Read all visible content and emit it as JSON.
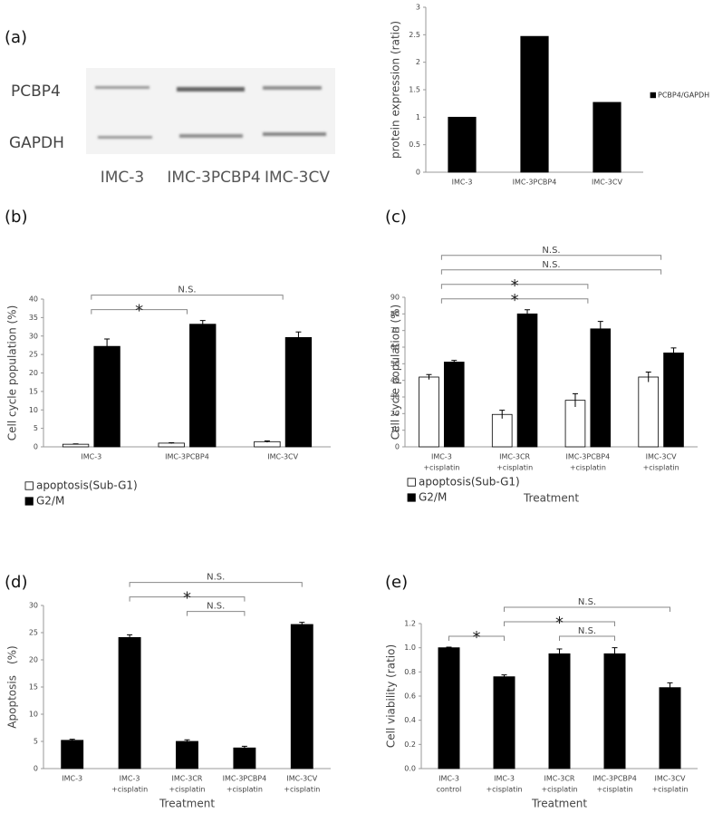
{
  "blot": {
    "panel": "(a)",
    "rows": [
      "PCBP4",
      "GAPDH"
    ],
    "lanes": [
      "IMC-3",
      "IMC-3PCBP4",
      "IMC-3CV"
    ]
  },
  "chart_data": [
    {
      "type": "bar",
      "ylabel": "protein expression (ratio)",
      "categories": [
        [
          "IMC-3"
        ],
        [
          "IMC-3PCBP4"
        ],
        [
          "IMC-3CV"
        ]
      ],
      "series": [
        {
          "name": "PCBP4/GAPDH",
          "color": "#000000",
          "values": [
            1.0,
            2.47,
            1.27
          ]
        }
      ],
      "ylim": [
        0,
        3
      ],
      "yticks": [
        0,
        0.5,
        1,
        1.5,
        2,
        2.5,
        3
      ],
      "legend": "right",
      "annotations": []
    },
    {
      "type": "bar",
      "panel": "(b)",
      "ylabel": "Cell cycle population (%)",
      "categories": [
        [
          "IMC-3"
        ],
        [
          "IMC-3PCBP4"
        ],
        [
          "IMC-3CV"
        ]
      ],
      "series": [
        {
          "name": "apoptosis(Sub-G1)",
          "color": "#ffffff",
          "values": [
            0.7,
            1.0,
            1.4
          ],
          "errors": [
            0.1,
            0.1,
            0.2
          ]
        },
        {
          "name": "G2/M",
          "color": "#000000",
          "values": [
            27.2,
            33.2,
            29.6
          ],
          "errors": [
            2.0,
            1.0,
            1.5
          ]
        }
      ],
      "ylim": [
        0,
        40
      ],
      "yticks": [
        0,
        5,
        10,
        15,
        20,
        25,
        30,
        35,
        40
      ],
      "legend": "bottom",
      "annotations": [
        {
          "text": "*",
          "between": [
            0,
            1
          ]
        },
        {
          "text": "N.S.",
          "between": [
            0,
            2
          ]
        }
      ]
    },
    {
      "type": "bar",
      "panel": "(c)",
      "ylabel": "Cell cycle population (%)",
      "xlabel": "Treatment",
      "categories": [
        [
          "IMC-3",
          "+cisplatin"
        ],
        [
          "IMC-3CR",
          "+cisplatin"
        ],
        [
          "IMC-3PCBP4",
          "+cisplatin"
        ],
        [
          "IMC-3CV",
          "+cisplatin"
        ]
      ],
      "series": [
        {
          "name": "apoptosis(Sub-G1)",
          "color": "#ffffff",
          "values": [
            42,
            19.5,
            28,
            42
          ],
          "errors": [
            1.5,
            2.5,
            4,
            3
          ]
        },
        {
          "name": "G2/M",
          "color": "#000000",
          "values": [
            51,
            80,
            71,
            56.5
          ],
          "errors": [
            1,
            2.5,
            4.5,
            3
          ]
        }
      ],
      "ylim": [
        0,
        90
      ],
      "yticks": [
        0,
        10,
        20,
        30,
        40,
        50,
        60,
        70,
        80,
        90
      ],
      "legend": "bottom",
      "annotations": [
        {
          "text": "*",
          "between": [
            0,
            2
          ]
        },
        {
          "text": "*",
          "between": [
            0,
            2
          ]
        },
        {
          "text": "N.S.",
          "between": [
            0,
            3
          ]
        },
        {
          "text": "N.S.",
          "between": [
            0,
            3
          ]
        }
      ]
    },
    {
      "type": "bar",
      "panel": "(d)",
      "ylabel": "Apoptosis　(%)",
      "xlabel": "Treatment",
      "categories": [
        [
          "IMC-3"
        ],
        [
          "IMC-3",
          "+cisplatin"
        ],
        [
          "IMC-3CR",
          "+cisplatin"
        ],
        [
          "IMC-3PCBP4",
          "+cisplatin"
        ],
        [
          "IMC-3CV",
          "+cisplatin"
        ]
      ],
      "values": [
        5.2,
        24.1,
        5.0,
        3.8,
        26.5
      ],
      "errors": [
        0.2,
        0.5,
        0.3,
        0.3,
        0.4
      ],
      "color": "#000000",
      "ylim": [
        0,
        30
      ],
      "yticks": [
        0,
        5,
        10,
        15,
        20,
        25,
        30
      ],
      "annotations": [
        {
          "text": "N.S.",
          "between": [
            2,
            3
          ]
        },
        {
          "text": "*",
          "between": [
            1,
            3
          ]
        },
        {
          "text": "N.S.",
          "between": [
            1,
            4
          ]
        }
      ]
    },
    {
      "type": "bar",
      "panel": "(e)",
      "ylabel": "Cell viability (ratio)",
      "xlabel": "Treatment",
      "categories": [
        [
          "IMC-3",
          "control"
        ],
        [
          "IMC-3",
          "+cisplatin"
        ],
        [
          "IMC-3CR",
          "+cisplatin"
        ],
        [
          "IMC-3PCBP4",
          "+cisplatin"
        ],
        [
          "IMC-3CV",
          "+cisplatin"
        ]
      ],
      "values": [
        1.0,
        0.76,
        0.95,
        0.95,
        0.67
      ],
      "errors": [
        0.005,
        0.015,
        0.04,
        0.05,
        0.04
      ],
      "color": "#000000",
      "ylim": [
        0,
        1.2
      ],
      "yticks": [
        {
          "value": 0,
          "label": "0.0"
        },
        {
          "value": 0.2,
          "label": "0.2"
        },
        {
          "value": 0.4,
          "label": "0.4"
        },
        {
          "value": 0.6,
          "label": "0.6"
        },
        {
          "value": 0.8,
          "label": "0.8"
        },
        {
          "value": 1.0,
          "label": "1.0"
        },
        {
          "value": 1.2,
          "label": "1.2"
        }
      ],
      "annotations": [
        {
          "text": "N.S.",
          "between": [
            2,
            3
          ]
        },
        {
          "text": "*",
          "between": [
            0,
            1
          ]
        },
        {
          "text": "*",
          "between": [
            1,
            3
          ]
        },
        {
          "text": "N.S.",
          "between": [
            1,
            4
          ]
        }
      ]
    }
  ]
}
